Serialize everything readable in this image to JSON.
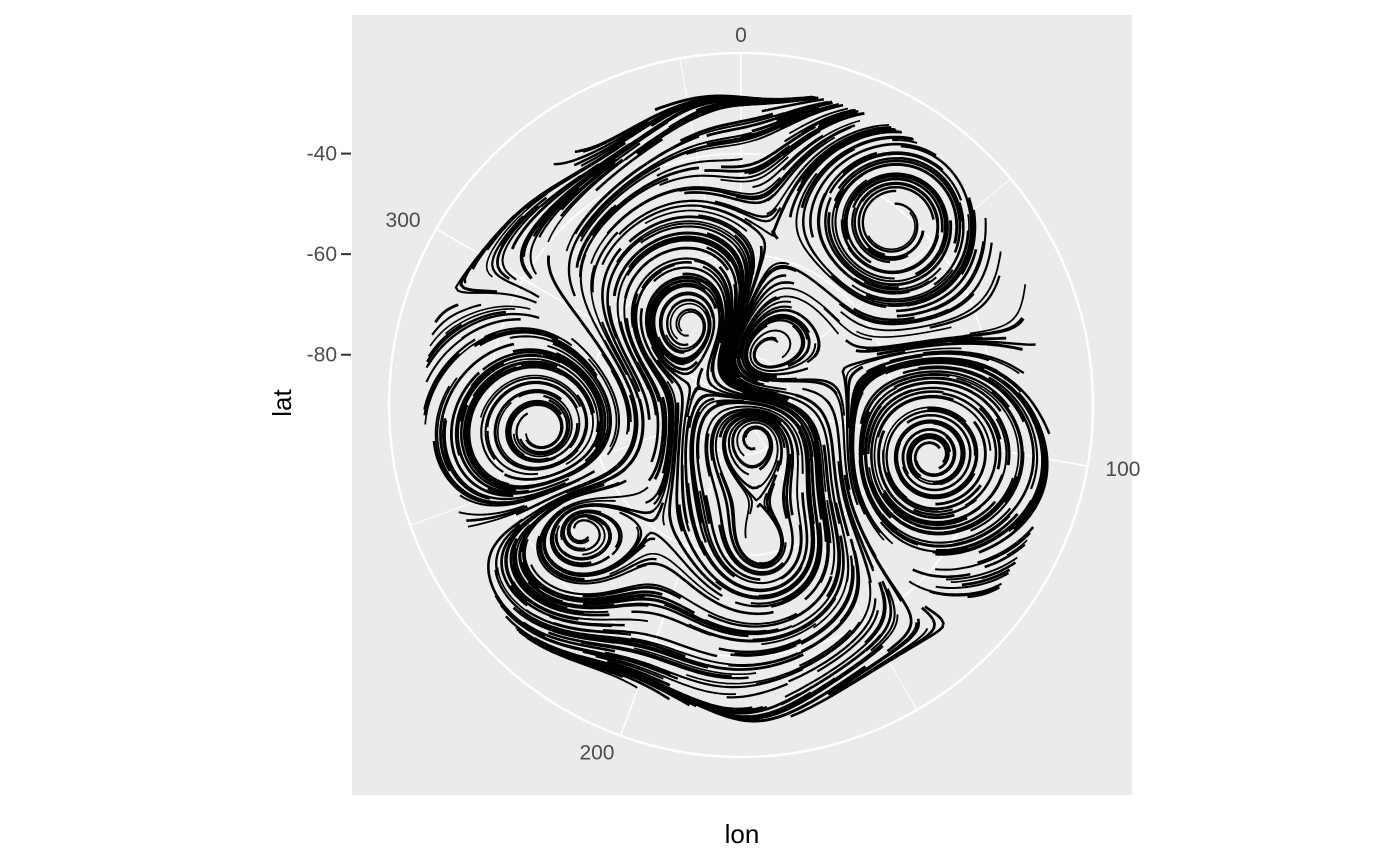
{
  "chart_data": {
    "type": "streamline",
    "coord": "polar",
    "xlabel": "lon",
    "ylabel": "lat",
    "x_ticks": [
      "0",
      "100",
      "200",
      "300"
    ],
    "y_ticks": [
      "-40",
      "-60",
      "-80"
    ],
    "x_tick_values": [
      0,
      100,
      200,
      300
    ],
    "y_tick_values": [
      -40,
      -60,
      -80
    ],
    "xlim": [
      0,
      360
    ],
    "ylim": [
      -90,
      -20
    ],
    "grid": true,
    "legend": "none",
    "colors": {
      "panel": "#ebebeb",
      "grid": "#ffffff",
      "lines": "#000000",
      "ticks": "#4d4d4d"
    },
    "vortices": [
      {
        "lon": 40,
        "lat": -43,
        "spin": 1,
        "turns": 4
      },
      {
        "lon": 105,
        "lat": -51,
        "spin": -1,
        "turns": 7
      },
      {
        "lon": 170,
        "lat": -61,
        "spin": 1,
        "turns": 4
      },
      {
        "lon": 235,
        "lat": -50,
        "spin": 1,
        "turns": 4
      },
      {
        "lon": 262,
        "lat": -50,
        "spin": -1,
        "turns": 8
      },
      {
        "lon": 330,
        "lat": -72,
        "spin": 1,
        "turns": 5
      },
      {
        "lon": 20,
        "lat": -80,
        "spin": -1,
        "turns": 6
      },
      {
        "lon": 150,
        "lat": -84,
        "spin": 1,
        "turns": 6
      }
    ]
  }
}
